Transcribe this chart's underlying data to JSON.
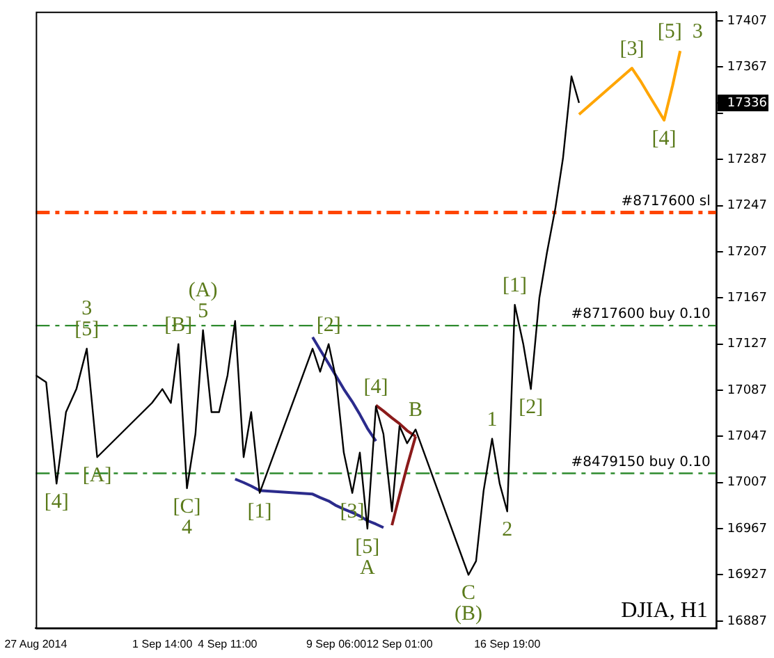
{
  "chart_data": {
    "type": "line",
    "ylim": [
      16881,
      17415
    ],
    "x": [
      "2014-08-27T00:00",
      "2014-08-27T11:00",
      "2014-08-27T22:00",
      "2014-08-28T08:00",
      "2014-08-28T19:00",
      "2014-08-29T06:00",
      "2014-08-29T17:00",
      "2014-09-01T03:00",
      "2014-09-01T14:00",
      "2014-09-01T23:00",
      "2014-09-02T07:00",
      "2014-09-02T16:00",
      "2014-09-03T01:00",
      "2014-09-03T09:00",
      "2014-09-03T18:00",
      "2014-09-04T02:00",
      "2014-09-04T11:00",
      "2014-09-04T19:00",
      "2014-09-05T04:00",
      "2014-09-05T12:00",
      "2014-09-05T21:00",
      "2014-09-08T05:00",
      "2014-09-08T13:00",
      "2014-09-08T22:00",
      "2014-09-09T06:00",
      "2014-09-09T14:00",
      "2014-09-09T23:00",
      "2014-09-10T07:00",
      "2014-09-10T15:00",
      "2014-09-11T00:00",
      "2014-09-11T08:00",
      "2014-09-11T17:00",
      "2014-09-12T01:00",
      "2014-09-12T09:00",
      "2014-09-12T18:00",
      "2014-09-15T02:00",
      "2014-09-15T10:00",
      "2014-09-15T18:00",
      "2014-09-16T03:00",
      "2014-09-16T11:00",
      "2014-09-16T19:00",
      "2014-09-17T03:00",
      "2014-09-17T12:00",
      "2014-09-17T20:00",
      "2014-09-18T05:00",
      "2014-09-18T13:00",
      "2014-09-18T22:00",
      "2014-09-19T06:00",
      "2014-09-19T15:00",
      "2014-09-19T23:00",
      "2014-09-22T07:00",
      "2014-09-22T16:00",
      "2014-09-23T00:00",
      "2014-09-23T09:00",
      "2014-09-23T17:00",
      "2014-09-24T02:00",
      "2014-09-24T10:00",
      null,
      null,
      null,
      null,
      null,
      null,
      null,
      null
    ],
    "xlim": [
      "2014-08-27T00:00",
      "2014-09-26T00:00"
    ],
    "xticks": [
      {
        "value": "2014-08-27T00:00",
        "label": "27 Aug 2014"
      },
      {
        "value": "2014-09-01T14:00",
        "label": "1 Sep 14:00"
      },
      {
        "value": "2014-09-04T11:00",
        "label": "4 Sep 11:00"
      },
      {
        "value": "2014-09-09T06:00",
        "label": "9 Sep 06:00"
      },
      {
        "value": "2014-09-12T01:00",
        "label": "12 Sep 01:00"
      },
      {
        "value": "2014-09-16T19:00",
        "label": "16 Sep 19:00"
      }
    ],
    "yticks": [
      16887,
      16927,
      16967,
      17007,
      17047,
      17087,
      17127,
      17167,
      17207,
      17247,
      17287,
      {
        "value": 17327,
        "label": null
      },
      {
        "value": 17336,
        "label": "17336"
      },
      17367,
      17407
    ],
    "grid": false,
    "legend": false,
    "marker": "none",
    "line_style": "solid",
    "series": [
      {
        "color": "#000000",
        "values": [
          17100,
          17094,
          17006,
          17068,
          17088,
          17123,
          17029,
          17076,
          17088,
          17076,
          17127,
          17002,
          17049,
          17139,
          17068,
          17068,
          17100,
          17147,
          17029,
          17068,
          16998,
          17123,
          17103,
          17127,
          17096,
          17033,
          16998,
          17033,
          16967,
          17073,
          17049,
          16982,
          17056,
          17041,
          17053,
          16927,
          16939,
          17000,
          17045,
          17006,
          16982,
          17161,
          17127,
          17088,
          17167,
          17206,
          17245,
          17288,
          17359,
          17336,
          null,
          null,
          null,
          null,
          null,
          null,
          null,
          null,
          null,
          null,
          null,
          null,
          null,
          null,
          null
        ]
      },
      {
        "color": "#ffa500",
        "values": [
          null,
          null,
          null,
          null,
          null,
          null,
          null,
          null,
          null,
          null,
          null,
          null,
          null,
          null,
          null,
          null,
          null,
          null,
          null,
          null,
          null,
          null,
          null,
          null,
          null,
          null,
          null,
          null,
          null,
          null,
          null,
          null,
          null,
          null,
          null,
          null,
          null,
          null,
          null,
          null,
          null,
          null,
          null,
          null,
          null,
          null,
          null,
          null,
          null,
          17326,
          17366,
          17355,
          17344,
          17332,
          17321,
          17351,
          17381,
          null,
          null,
          null,
          null,
          null,
          null,
          null,
          null
        ]
      },
      {
        "color": "#2b2b8c",
        "values": [
          null,
          null,
          null,
          null,
          null,
          null,
          null,
          null,
          null,
          null,
          null,
          null,
          null,
          null,
          null,
          null,
          null,
          null,
          null,
          null,
          null,
          17133,
          17122,
          17110,
          17099,
          17088,
          17077,
          17066,
          17054,
          17043,
          null,
          null,
          null,
          null,
          null,
          null,
          null,
          null,
          null,
          null,
          null,
          null,
          null,
          null,
          null,
          null,
          null,
          null,
          null,
          null,
          null,
          null,
          null,
          null,
          null,
          null,
          null,
          null,
          null,
          null,
          null,
          null,
          null,
          null,
          null
        ]
      },
      {
        "color": "#2b2b8c",
        "values": [
          null,
          null,
          null,
          null,
          null,
          null,
          null,
          null,
          null,
          null,
          null,
          null,
          null,
          null,
          null,
          null,
          null,
          17010,
          17007,
          17004,
          17000,
          16997,
          16994,
          16991,
          16987,
          16984,
          16981,
          16978,
          16974,
          16971,
          16968,
          null,
          null,
          null,
          null,
          null,
          null,
          null,
          null,
          null,
          null,
          null,
          null,
          null,
          null,
          null,
          null,
          null,
          null,
          null,
          null,
          null,
          null,
          null,
          null,
          null,
          null,
          null,
          null,
          null,
          null,
          null,
          null,
          null,
          null
        ]
      },
      {
        "color": "#8b1a1a",
        "values": [
          null,
          null,
          null,
          null,
          null,
          null,
          null,
          null,
          null,
          null,
          null,
          null,
          null,
          null,
          null,
          null,
          null,
          null,
          null,
          null,
          null,
          null,
          null,
          null,
          null,
          null,
          null,
          null,
          null,
          17074,
          17069,
          17063,
          17058,
          17052,
          17047,
          null,
          null,
          null,
          null,
          null,
          null,
          null,
          null,
          null,
          null,
          null,
          null,
          null,
          null,
          null,
          null,
          null,
          null,
          null,
          null,
          null,
          null,
          null,
          null,
          null,
          null,
          null,
          null,
          null,
          null
        ]
      },
      {
        "color": "#8b1a1a",
        "values": [
          null,
          null,
          null,
          null,
          null,
          null,
          null,
          null,
          null,
          null,
          null,
          null,
          null,
          null,
          null,
          null,
          null,
          null,
          null,
          null,
          null,
          null,
          null,
          null,
          null,
          null,
          null,
          null,
          null,
          null,
          null,
          16970,
          16996,
          17021,
          17047,
          null,
          null,
          null,
          null,
          null,
          null,
          null,
          null,
          null,
          null,
          null,
          null,
          null,
          null,
          null,
          null,
          null,
          null,
          null,
          null,
          null,
          null,
          null,
          null,
          null,
          null,
          null,
          null,
          null,
          null
        ]
      }
    ],
    "ref_lines": [
      {
        "axis": "y",
        "value": 17241,
        "label": "#8717600 sl",
        "color": "#ff4500",
        "line_style": "dashed"
      },
      {
        "axis": "y",
        "value": 17143,
        "label": "#8717600 buy 0.10",
        "color": "#2e8b2e",
        "line_style": "dashed"
      },
      {
        "axis": "y",
        "value": 17015,
        "label": "#8479150 buy 0.10",
        "color": "#2e8b2e",
        "line_style": "dashed"
      }
    ],
    "annotations": [
      {
        "text": "[4]",
        "x": "2014-08-27T22:00",
        "y": 17006
      },
      {
        "text": "[5]",
        "x": "2014-08-29T06:00",
        "y": 17123
      },
      {
        "text": "3",
        "x": "2014-08-29T06:00",
        "y": 17123
      },
      {
        "text": "[A]",
        "x": "2014-08-29T17:00",
        "y": 17029
      },
      {
        "text": "[B]",
        "x": "2014-09-02T07:00",
        "y": 17127
      },
      {
        "text": "[C]",
        "x": "2014-09-02T16:00",
        "y": 17002
      },
      {
        "text": "4",
        "x": "2014-09-02T16:00",
        "y": 17002
      },
      {
        "text": "5",
        "x": "2014-09-03T09:00",
        "y": 17139
      },
      {
        "text": "(A)",
        "x": "2014-09-03T09:00",
        "y": 17139
      },
      {
        "text": "[1]",
        "x": "2014-09-05T21:00",
        "y": 16998
      },
      {
        "text": "[2]",
        "x": "2014-09-08T22:00",
        "y": 17127
      },
      {
        "text": "[3]",
        "x": "2014-09-09T23:00",
        "y": 16998
      },
      {
        "text": "[5]",
        "x": "2014-09-10T15:00",
        "y": 16967
      },
      {
        "text": "A",
        "x": "2014-09-10T15:00",
        "y": 16967
      },
      {
        "text": "[4]",
        "x": "2014-09-11T00:00",
        "y": 17073
      },
      {
        "text": "B",
        "x": "2014-09-12T18:00",
        "y": 17053
      },
      {
        "text": "C",
        "x": "2014-09-15T02:00",
        "y": 16927
      },
      {
        "text": "(B)",
        "x": "2014-09-15T02:00",
        "y": 16927
      },
      {
        "text": "1",
        "x": "2014-09-16T03:00",
        "y": 17045
      },
      {
        "text": "2",
        "x": "2014-09-16T19:00",
        "y": 16982
      },
      {
        "text": "[1]",
        "x": "2014-09-17T03:00",
        "y": 17161
      },
      {
        "text": "[2]",
        "x": "2014-09-17T20:00",
        "y": 17088
      },
      {
        "text": "[3]",
        "x": "2014-09-22T07:00",
        "y": 17366
      },
      {
        "text": "[4]",
        "x": "2014-09-23T17:00",
        "y": 17321
      },
      {
        "text": "[5]  3",
        "x": "2014-09-24T10:00",
        "y": 17381
      },
      "DJIA, H1"
    ]
  }
}
